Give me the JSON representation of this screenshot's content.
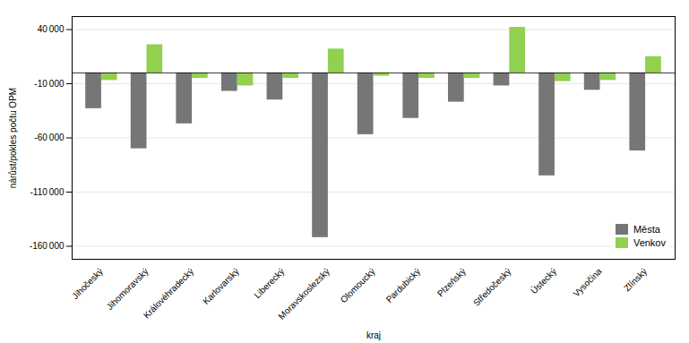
{
  "chart_data": {
    "type": "bar",
    "xlabel": "kraj",
    "ylabel": "nárůst/pokles počtu OPM",
    "categories": [
      "Jihočeský",
      "Jihomoravský",
      "Královéhradecký",
      "Karlovarský",
      "Liberecký",
      "Moravskoslezský",
      "Olomoucký",
      "Pardubický",
      "Plzeňský",
      "Středočeský",
      "Ústecký",
      "Vysočina",
      "Zlínský"
    ],
    "series": [
      {
        "name": "Města",
        "color": "#767676",
        "values": [
          -33000,
          -70000,
          -47000,
          -17000,
          -25000,
          -152000,
          -57000,
          -42000,
          -27000,
          -12000,
          -95000,
          -16000,
          -72000
        ]
      },
      {
        "name": "Venkov",
        "color": "#92d050",
        "values": [
          -7000,
          26000,
          -5000,
          -12000,
          -5000,
          22000,
          -3000,
          -5000,
          -5000,
          42000,
          -8000,
          -7000,
          15000
        ]
      }
    ],
    "ylim": [
      -172000,
      52000
    ],
    "yticks": [
      {
        "value": -160000,
        "label": "-160 000"
      },
      {
        "value": -110000,
        "label": "-110 000"
      },
      {
        "value": -60000,
        "label": "-60 000"
      },
      {
        "value": -10000,
        "label": "-10 000"
      },
      {
        "value": 40000,
        "label": "40 000"
      }
    ],
    "grid": true,
    "legend": "lower right"
  }
}
